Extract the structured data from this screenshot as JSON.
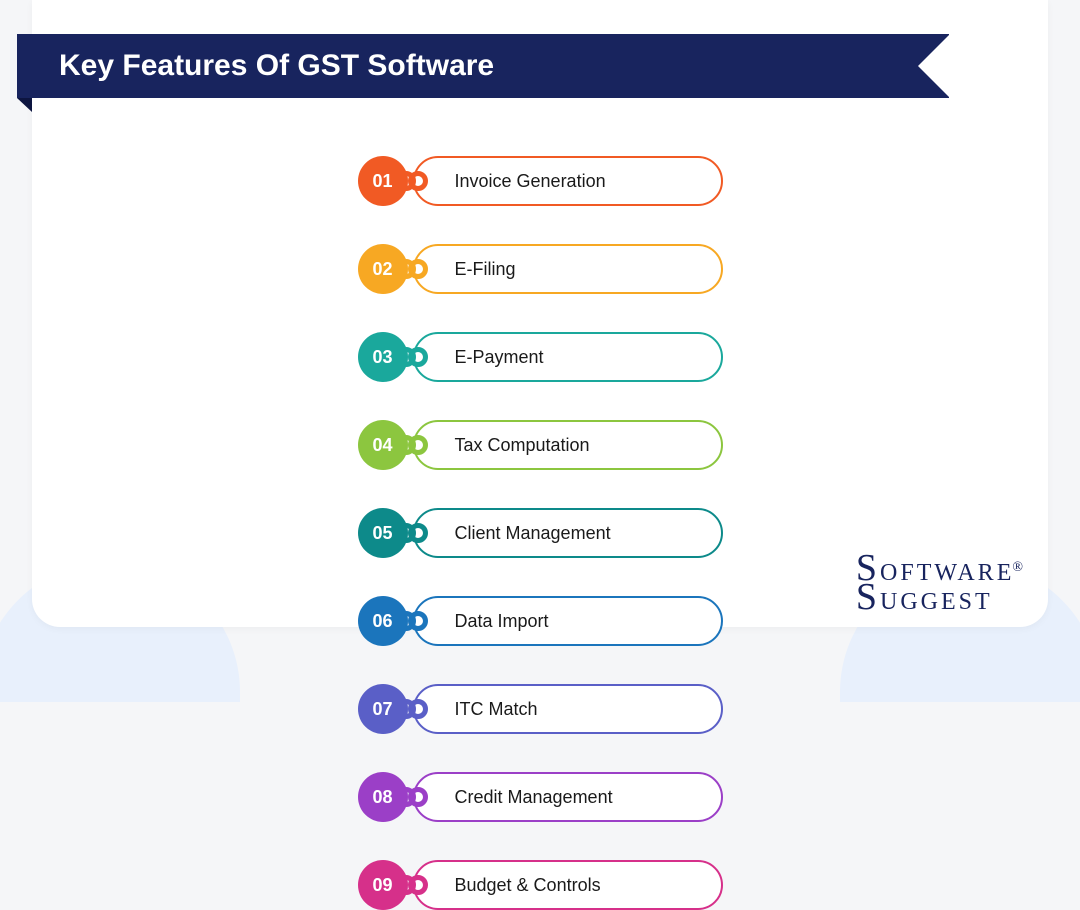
{
  "title": "Key Features Of GST Software",
  "background_color": "#f5f6f8",
  "card_bg": "#ffffff",
  "banner_bg": "#18245e",
  "banner_fold": "#0d1540",
  "blob_color": "#e8f0fc",
  "logo": {
    "line1": "OFTWARE",
    "line2": "UGGEST",
    "color": "#18245e"
  },
  "features": [
    {
      "num": "01",
      "label": "Invoice Generation",
      "color": "#f15a24"
    },
    {
      "num": "02",
      "label": "E-Filing",
      "color": "#f7a823"
    },
    {
      "num": "03",
      "label": "E-Payment",
      "color": "#1aa89c"
    },
    {
      "num": "04",
      "label": "Tax Computation",
      "color": "#8cc63f"
    },
    {
      "num": "05",
      "label": "Client Management",
      "color": "#0d8a8a"
    },
    {
      "num": "06",
      "label": "Data Import",
      "color": "#1b75bc"
    },
    {
      "num": "07",
      "label": "ITC Match",
      "color": "#5a5fc7"
    },
    {
      "num": "08",
      "label": "Credit Management",
      "color": "#9b3fc7"
    },
    {
      "num": "09",
      "label": "Budget & Controls",
      "color": "#d6308a"
    }
  ],
  "styling": {
    "pill_width": 365,
    "pill_height": 50,
    "circle_diameter": 50,
    "border_radius": 25,
    "label_fontsize": 18,
    "number_fontsize": 18,
    "title_fontsize": 30,
    "title_color": "#ffffff",
    "label_color": "#1a1a1a",
    "columns": 2,
    "gap_v": 38,
    "gap_h": 18
  }
}
